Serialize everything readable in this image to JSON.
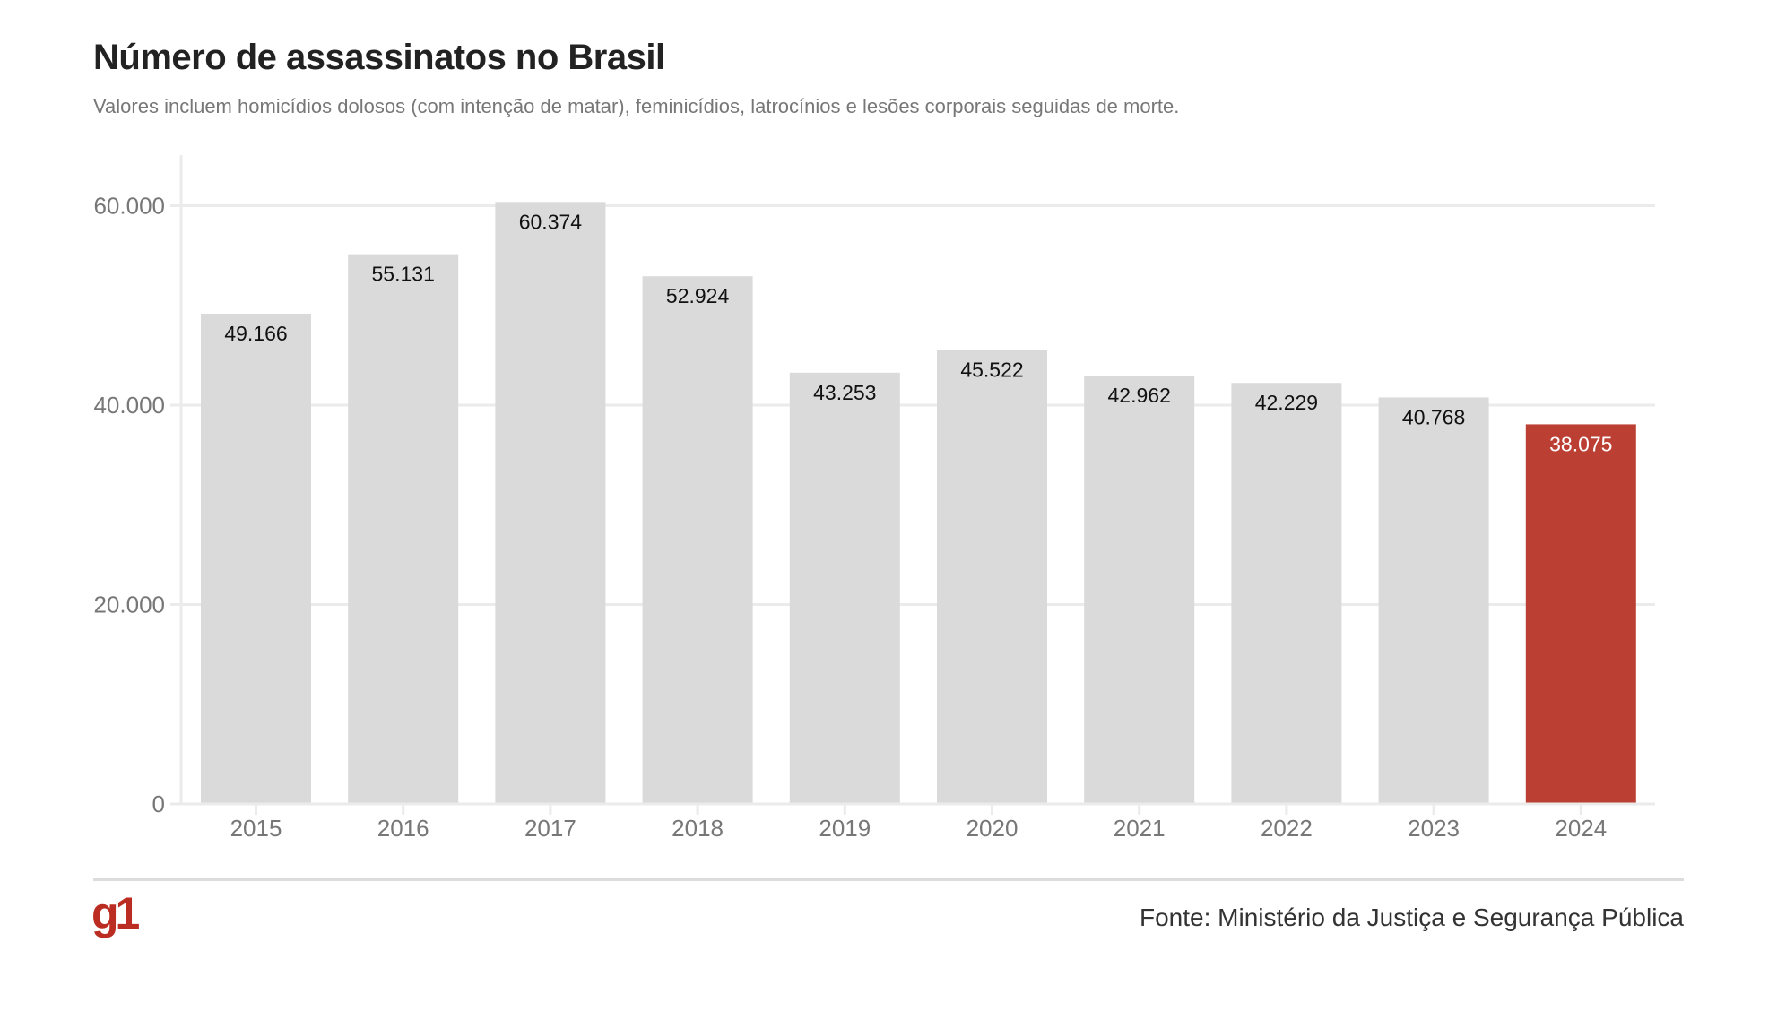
{
  "chart_data": {
    "type": "bar",
    "title": "Número de assassinatos no Brasil",
    "subtitle": "Valores incluem homicídios dolosos (com intenção de matar), feminicídios, latrocínios e lesões corporais seguidas de morte.",
    "categories": [
      "2015",
      "2016",
      "2017",
      "2018",
      "2019",
      "2020",
      "2021",
      "2022",
      "2023",
      "2024"
    ],
    "values": [
      49166,
      55131,
      60374,
      52924,
      43253,
      45522,
      42962,
      42229,
      40768,
      38075
    ],
    "data_labels": [
      "49.166",
      "55.131",
      "60.374",
      "52.924",
      "43.253",
      "45.522",
      "42.962",
      "42.229",
      "40.768",
      "38.075"
    ],
    "y_ticks": [
      0,
      20000,
      40000,
      60000
    ],
    "y_tick_labels": [
      "0",
      "20.000",
      "40.000",
      "60.000"
    ],
    "ylim": [
      0,
      65000
    ],
    "grid": true,
    "highlight_category": "2024",
    "colors": {
      "bar": "#dadada",
      "highlight": "#bb4033",
      "grid": "#ebebeb"
    },
    "xlabel": "",
    "ylabel": ""
  },
  "footer": {
    "logo": "g1",
    "source": "Fonte: Ministério da Justiça e Segurança Pública"
  }
}
